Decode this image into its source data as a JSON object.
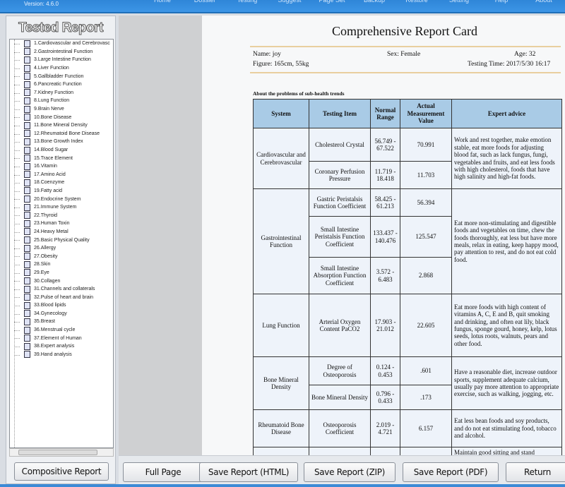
{
  "app": {
    "version": "Version: 4.6.0"
  },
  "nav": [
    "Home",
    "Dossier",
    "Testing",
    "Suggest",
    "Page Set",
    "Backup",
    "Restore",
    "Setting",
    "Help",
    "About"
  ],
  "sidebar": {
    "title": "Tested Report",
    "items": [
      "1.Cardiovascular and Cerebrovasc",
      "2.Gastrointestinal Function",
      "3.Large Intestine Function",
      "4.Liver Function",
      "5.Gallbladder Function",
      "6.Pancreatic Function",
      "7.Kidney Function",
      "8.Lung Function",
      "9.Brain Nerve",
      "10.Bone Disease",
      "11.Bone Mineral Density",
      "12.Rheumatoid Bone Disease",
      "13.Bone Growth Index",
      "14.Blood Sugar",
      "15.Trace Element",
      "16.Vitamin",
      "17.Amino Acid",
      "18.Coenzyme",
      "19.Fatty acid",
      "20.Endocrine System",
      "21.Immune System",
      "22.Thyroid",
      "23.Human Toxin",
      "24.Heavy Metal",
      "25.Basic Physical Quality",
      "26.Allergy",
      "27.Obesity",
      "28.Skin",
      "29.Eye",
      "30.Collagen",
      "31.Channels and collaterals",
      "32.Pulse of heart and brain",
      "33.Blood lipids",
      "34.Gynecology",
      "35.Breast",
      "36.Menstrual cycle",
      "37.Element of Human",
      "38.Expert analysis",
      "39.Hand analysis"
    ],
    "button": "Compositive Report"
  },
  "report": {
    "title": "Comprehensive Report Card",
    "name": "Name: joy",
    "sex": "Sex: Female",
    "age": "Age: 32",
    "figure": "Figure: 165cm, 55kg",
    "time": "Testing Time: 2017/5/30 16:17",
    "subtitle": "About the problems of sub-health trends",
    "headers": [
      "System",
      "Testing Item",
      "Normal Range",
      "Actual Measurement Value",
      "Expert advice"
    ],
    "groups": [
      {
        "system": "Cardiovascular and Cerebrovascular",
        "advice": "Work and rest together, make emotion stable, eat more foods for adjusting blood fat, such as lack fungus, fungi, vegetables and fruits, and eat less foods with high cholesterol, foods that have high salinity and high-fat foods.",
        "rows": [
          {
            "item": "Cholesterol Crystal",
            "range": "56.749 - 67.522",
            "value": "70.991"
          },
          {
            "item": "Coronary Perfusion Pressure",
            "range": "11.719 - 18.418",
            "value": "11.703"
          }
        ]
      },
      {
        "system": "Gastrointestinal Function",
        "advice": "Eat more non-stimulating and digestible foods and vegetables on time, chew the foods thoroughly, eat less but have more meals, relax in eating, keep happy mood, pay attention to rest, and do not eat cold food.",
        "rows": [
          {
            "item": "Gastric Peristalsis Function Coefficient",
            "range": "58.425 - 61.213",
            "value": "56.394"
          },
          {
            "item": "Small Intestine Peristalsis Function Coefficient",
            "range": "133.437 - 140.476",
            "value": "125.547"
          },
          {
            "item": "Small Intestine Absorption Function Coefficient",
            "range": "3.572 - 6.483",
            "value": "2.868"
          }
        ]
      },
      {
        "system": "Lung Function",
        "advice": "Eat more foods with high content of vitamins A, C, E and B, quit smoking and drinking, and often eat lily, black fungus, sponge gourd, honey, kelp, lotus seeds, lotus roots, walnuts, pears and other food.",
        "rows": [
          {
            "item": "Arterial Oxygen Content PaCO2",
            "range": "17.903 - 21.012",
            "value": "22.605"
          }
        ]
      },
      {
        "system": "Bone Mineral Density",
        "advice": "Have a reasonable diet, increase outdoor sports, supplement adequate calcium, usually pay more attention to appropriate exercise, such as walking, jogging, etc.",
        "rows": [
          {
            "item": "Degree of Osteoporosis",
            "range": "0.124 - 0.453",
            "value": ".601"
          },
          {
            "item": "Bone Mineral Density",
            "range": "0.796 - 0.433",
            "value": ".173"
          }
        ]
      },
      {
        "system": "Rheumatoid Bone Disease",
        "advice": "Eat less bean foods and soy products, and do not eat stimulating food, tobacco and alcohol.",
        "rows": [
          {
            "item": "Osteoporosis Coefficient",
            "range": "2.019 - 4.721",
            "value": "6.157"
          }
        ]
      },
      {
        "system": "",
        "advice": "Maintain good sitting and stand",
        "rows": [
          {
            "item": "",
            "range": "",
            "value": ""
          }
        ]
      }
    ]
  },
  "buttons": {
    "full_page": "Full Page",
    "save_html": "Save Report (HTML)",
    "save_zip": "Save Report (ZIP)",
    "save_pdf": "Save Report (PDF)",
    "return": "Return"
  }
}
